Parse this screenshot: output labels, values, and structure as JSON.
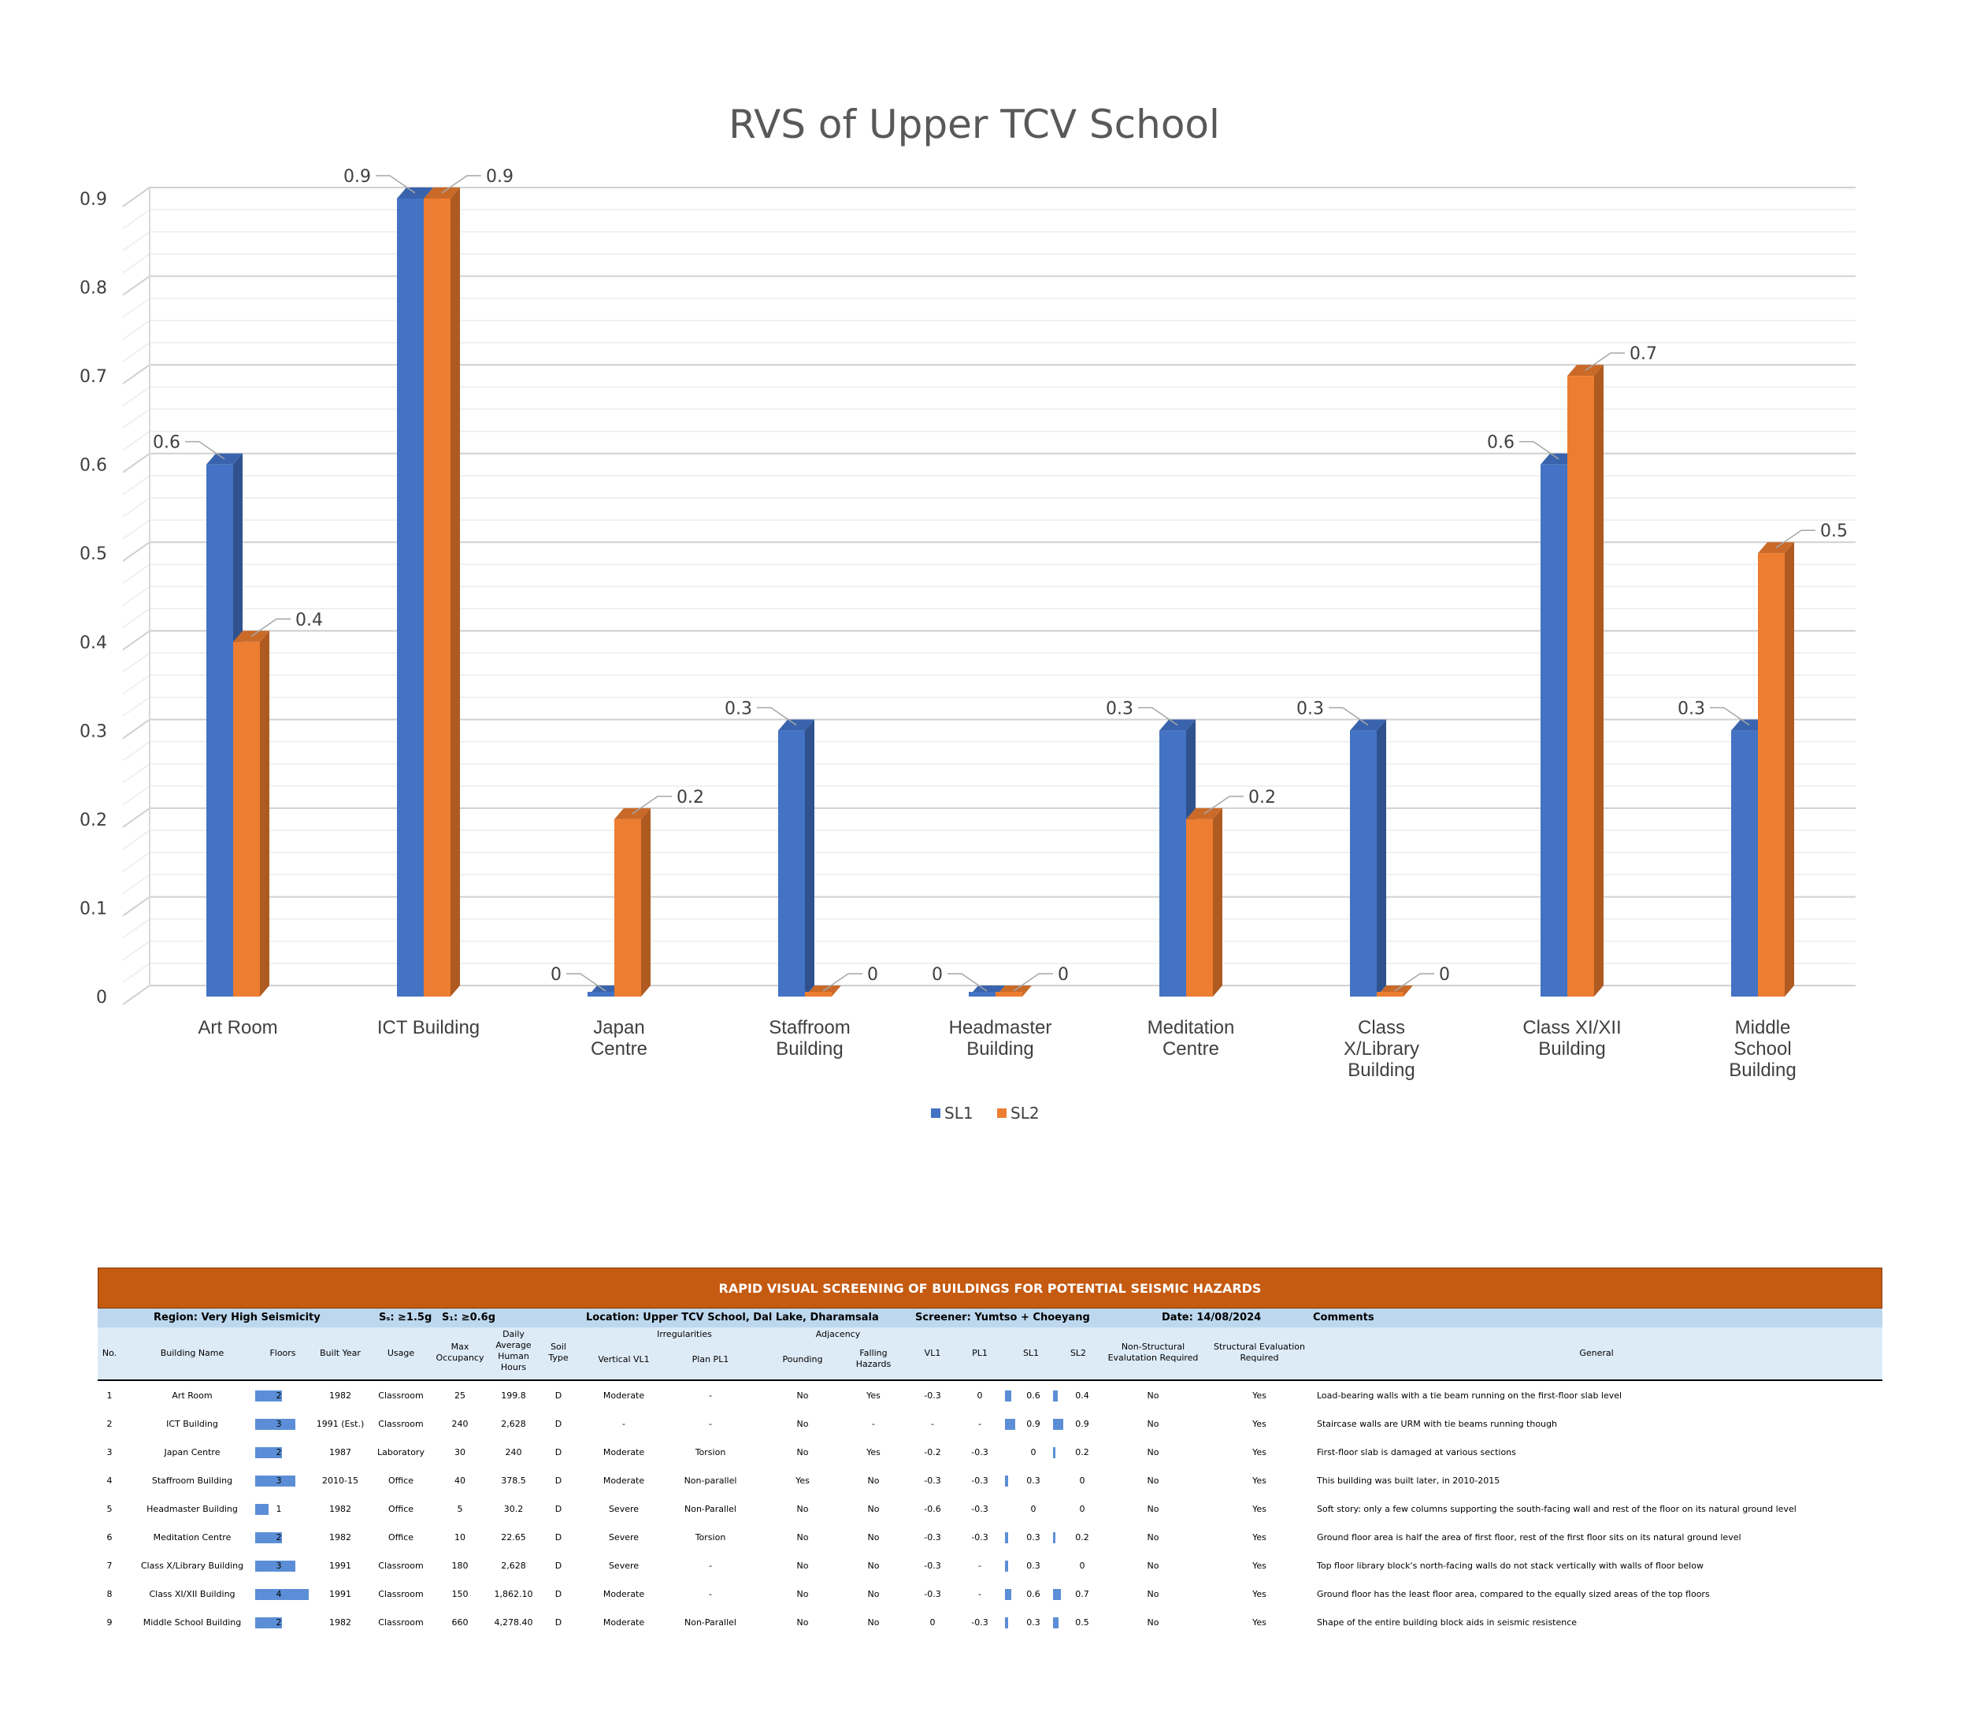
{
  "chart_data": {
    "type": "bar",
    "title": "RVS of Upper TCV School",
    "categories": [
      [
        "Art Room"
      ],
      [
        "ICT Building"
      ],
      [
        "Japan",
        "Centre"
      ],
      [
        "Staffroom",
        "Building"
      ],
      [
        "Headmaster",
        "Building"
      ],
      [
        "Meditation",
        "Centre"
      ],
      [
        "Class",
        "X/Library",
        "Building"
      ],
      [
        "Class XI/XII",
        "Building"
      ],
      [
        "Middle",
        "School",
        "Building"
      ]
    ],
    "series": [
      {
        "name": "SL1",
        "color": "#4472c4",
        "values": [
          0.6,
          0.9,
          0,
          0.3,
          0,
          0.3,
          0.3,
          0.6,
          0.3
        ]
      },
      {
        "name": "SL2",
        "color": "#ed7d31",
        "values": [
          0.4,
          0.9,
          0.2,
          0,
          0,
          0.2,
          0,
          0.7,
          0.5
        ]
      }
    ],
    "ylim": [
      0,
      0.9
    ],
    "yticks": [
      "0",
      "0.1",
      "0.2",
      "0.3",
      "0.4",
      "0.5",
      "0.6",
      "0.7",
      "0.8",
      "0.9"
    ],
    "legend": "bottom",
    "grid": true
  },
  "table": {
    "title": "RAPID VISUAL SCREENING OF BUILDINGS FOR POTENTIAL SEISMIC HAZARDS",
    "meta": {
      "region": "Region: Very High Seismicity",
      "ss": "Sₛ: ≥1.5g",
      "s1": "S₁: ≥0.6g",
      "location": "Location: Upper TCV School, Dal Lake, Dharamsala",
      "screener": "Screener: Yumtso + Choeyang",
      "date": "Date: 14/08/2024",
      "comments": "Comments"
    },
    "headers": {
      "no": "No.",
      "name": "Building Name",
      "floors": "Floors",
      "built": "Built Year",
      "usage": "Usage",
      "maxocc": [
        "Max",
        "Occupancy"
      ],
      "daily": [
        "Daily",
        "Average",
        "Human",
        "Hours"
      ],
      "soil": [
        "Soil",
        "Type"
      ],
      "irregularities": "Irregularities",
      "vl1": "Vertical VL1",
      "pl1": "Plan PL1",
      "adjacency": "Adjacency",
      "pounding": "Pounding",
      "falling": [
        "Falling",
        "Hazards"
      ],
      "vl1s": "VL1",
      "pl1s": "PL1",
      "sl1": "SL1",
      "sl2": "SL2",
      "nonstruct": [
        "Non-Structural",
        "Evalutation Required"
      ],
      "struct": [
        "Structural Evaluation",
        "Required"
      ],
      "general": "General"
    },
    "rows": [
      {
        "no": "1",
        "name": "Art Room",
        "floors": 2,
        "built": "1982",
        "usage": "Classroom",
        "maxocc": "25",
        "daily": "199.8",
        "soil": "D",
        "vl1": "Moderate",
        "pl1": "-",
        "pounding": "No",
        "falling": "Yes",
        "vl1s": "-0.3",
        "pl1s": "0",
        "sl1": 0.6,
        "sl2": 0.4,
        "nonstruct": "No",
        "struct": "Yes",
        "comment": "Load-bearing walls with a tie beam running on the first-floor slab level"
      },
      {
        "no": "2",
        "name": "ICT Building",
        "floors": 3,
        "built": "1991 (Est.)",
        "usage": "Classroom",
        "maxocc": "240",
        "daily": "2,628",
        "soil": "D",
        "vl1": "-",
        "pl1": "-",
        "pounding": "No",
        "falling": "-",
        "vl1s": "-",
        "pl1s": "-",
        "sl1": 0.9,
        "sl2": 0.9,
        "nonstruct": "No",
        "struct": "Yes",
        "comment": "Staircase walls are URM with tie beams running though"
      },
      {
        "no": "3",
        "name": "Japan Centre",
        "floors": 2,
        "built": "1987",
        "usage": "Laboratory",
        "maxocc": "30",
        "daily": "240",
        "soil": "D",
        "vl1": "Moderate",
        "pl1": "Torsion",
        "pounding": "No",
        "falling": "Yes",
        "vl1s": "-0.2",
        "pl1s": "-0.3",
        "sl1": 0,
        "sl2": 0.2,
        "nonstruct": "No",
        "struct": "Yes",
        "comment": "First-floor slab is damaged at various sections"
      },
      {
        "no": "4",
        "name": "Staffroom Building",
        "floors": 3,
        "built": "2010-15",
        "usage": "Office",
        "maxocc": "40",
        "daily": "378.5",
        "soil": "D",
        "vl1": "Moderate",
        "pl1": "Non-parallel",
        "pounding": "Yes",
        "falling": "No",
        "vl1s": "-0.3",
        "pl1s": "-0.3",
        "sl1": 0.3,
        "sl2": 0,
        "nonstruct": "No",
        "struct": "Yes",
        "comment": "This building was built later, in 2010-2015"
      },
      {
        "no": "5",
        "name": "Headmaster Building",
        "floors": 1,
        "built": "1982",
        "usage": "Office",
        "maxocc": "5",
        "daily": "30.2",
        "soil": "D",
        "vl1": "Severe",
        "pl1": "Non-Parallel",
        "pounding": "No",
        "falling": "No",
        "vl1s": "-0.6",
        "pl1s": "-0.3",
        "sl1": 0,
        "sl2": 0,
        "nonstruct": "No",
        "struct": "Yes",
        "comment": "Soft story: only a few columns supporting the south-facing wall and rest of the floor on its natural ground level"
      },
      {
        "no": "6",
        "name": "Meditation Centre",
        "floors": 2,
        "built": "1982",
        "usage": "Office",
        "maxocc": "10",
        "daily": "22.65",
        "soil": "D",
        "vl1": "Severe",
        "pl1": "Torsion",
        "pounding": "No",
        "falling": "No",
        "vl1s": "-0.3",
        "pl1s": "-0.3",
        "sl1": 0.3,
        "sl2": 0.2,
        "nonstruct": "No",
        "struct": "Yes",
        "comment": "Ground floor area is half the area of first floor, rest of the first floor sits on its natural ground level"
      },
      {
        "no": "7",
        "name": "Class X/Library Building",
        "floors": 3,
        "built": "1991",
        "usage": "Classroom",
        "maxocc": "180",
        "daily": "2,628",
        "soil": "D",
        "vl1": "Severe",
        "pl1": "-",
        "pounding": "No",
        "falling": "No",
        "vl1s": "-0.3",
        "pl1s": "-",
        "sl1": 0.3,
        "sl2": 0,
        "nonstruct": "No",
        "struct": "Yes",
        "comment": "Top floor library block's north-facing walls do not stack vertically with walls of floor below"
      },
      {
        "no": "8",
        "name": "Class XI/XII Building",
        "floors": 4,
        "built": "1991",
        "usage": "Classroom",
        "maxocc": "150",
        "daily": "1,862.10",
        "soil": "D",
        "vl1": "Moderate",
        "pl1": "-",
        "pounding": "No",
        "falling": "No",
        "vl1s": "-0.3",
        "pl1s": "-",
        "sl1": 0.6,
        "sl2": 0.7,
        "nonstruct": "No",
        "struct": "Yes",
        "comment": "Ground floor has the least floor area, compared to the equally sized areas of the top floors"
      },
      {
        "no": "9",
        "name": "Middle School Building",
        "floors": 2,
        "built": "1982",
        "usage": "Classroom",
        "maxocc": "660",
        "daily": "4,278.40",
        "soil": "D",
        "vl1": "Moderate",
        "pl1": "Non-Parallel",
        "pounding": "No",
        "falling": "No",
        "vl1s": "0",
        "pl1s": "-0.3",
        "sl1": 0.3,
        "sl2": 0.5,
        "nonstruct": "No",
        "struct": "Yes",
        "comment": "Shape of the entire building block aids in seismic resistence"
      }
    ]
  }
}
